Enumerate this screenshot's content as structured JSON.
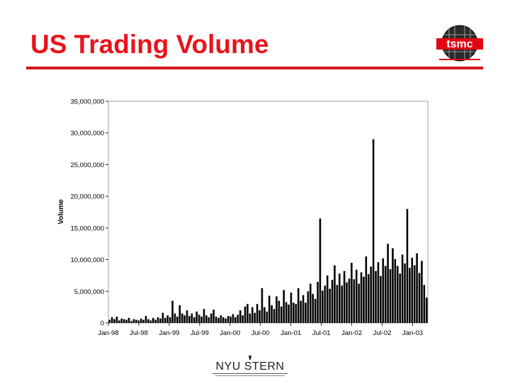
{
  "slide": {
    "title": "US Trading Volume",
    "title_color": "#e8141c",
    "rule_color": "#d6141c"
  },
  "logo": {
    "text": "tsmc",
    "icon": "tsmc-wafer-logo"
  },
  "footer": {
    "text": "NYU STERN",
    "icon": "nyu-stern-torch-logo"
  },
  "chart_data": {
    "type": "bar",
    "title": "",
    "xlabel": "",
    "ylabel": "Volume",
    "ylim": [
      0,
      35000000
    ],
    "y_ticks": [
      0,
      5000000,
      10000000,
      15000000,
      20000000,
      25000000,
      30000000,
      35000000
    ],
    "y_tick_labels": [
      "0",
      "5,000,000",
      "10,000,000",
      "15,000,000",
      "20,000,000",
      "25,000,000",
      "30,000,000",
      "35,000,000"
    ],
    "x_tick_labels": [
      "Jan-98",
      "Jul-98",
      "Jan-99",
      "Jul-99",
      "Jan-00",
      "Jul-00",
      "Jan-01",
      "Jul-01",
      "Jan-02",
      "Jul-02",
      "Jan-03"
    ],
    "x_range": [
      "Jan-98",
      "Mar-03"
    ],
    "grid": false,
    "legend": "none",
    "bar_color": "#000000",
    "series": [
      {
        "values": [
          500000,
          900000,
          600000,
          1000000,
          400000,
          700000,
          600000,
          500000,
          800000,
          300000,
          600000,
          500000,
          400000,
          700000,
          500000,
          1100000,
          600000,
          400000,
          800000,
          500000,
          900000,
          700000,
          1600000,
          800000,
          1200000,
          900000,
          3500000,
          1500000,
          1000000,
          2800000,
          1500000,
          1200000,
          2000000,
          1100000,
          1500000,
          900000,
          1800000,
          1300000,
          1000000,
          2200000,
          1200000,
          900000,
          1500000,
          2100000,
          1000000,
          800000,
          1200000,
          900000,
          700000,
          1100000,
          1000000,
          1400000,
          900000,
          1300000,
          2000000,
          1200000,
          2600000,
          3000000,
          1500000,
          2500000,
          1600000,
          3000000,
          2000000,
          5500000,
          2500000,
          1800000,
          4300000,
          2800000,
          2200000,
          4200000,
          3500000,
          2600000,
          5200000,
          3300000,
          2900000,
          4800000,
          3200000,
          3000000,
          5500000,
          3500000,
          4400000,
          3200000,
          5000000,
          6200000,
          4600000,
          3800000,
          6500000,
          16500000,
          5100000,
          5900000,
          7500000,
          5400000,
          6800000,
          9100000,
          6000000,
          7800000,
          5900000,
          8200000,
          6400000,
          7000000,
          9500000,
          6900000,
          8400000,
          6200000,
          8000000,
          7300000,
          10500000,
          7700000,
          8900000,
          29000000,
          8200000,
          9600000,
          7400000,
          10200000,
          9000000,
          12500000,
          8500000,
          11800000,
          10100000,
          9000000,
          7800000,
          10800000,
          9400000,
          18000000,
          8700000,
          10300000,
          9100000,
          11000000,
          7900000,
          9800000,
          6000000,
          4000000
        ]
      }
    ]
  }
}
